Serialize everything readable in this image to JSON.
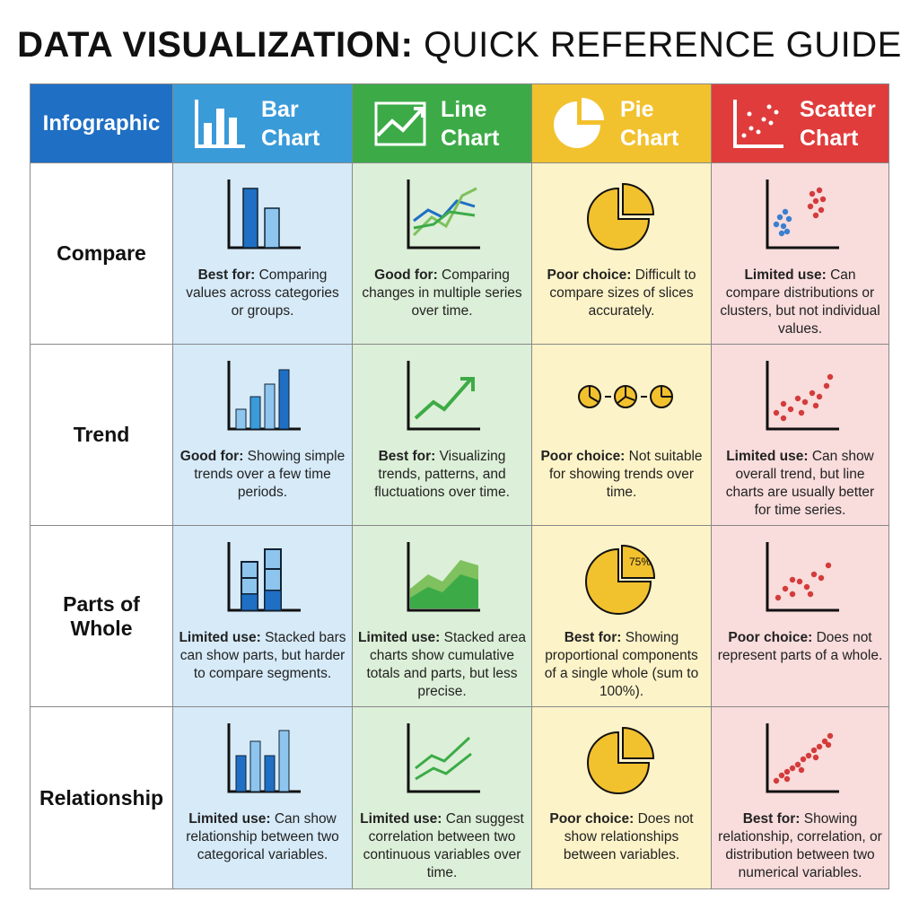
{
  "header": {
    "title_bold": "DATA VISUALIZATION:",
    "title_rest": "QUICK REFERENCE GUIDE"
  },
  "table": {
    "corner": "Infographic",
    "columns": [
      "Bar Chart",
      "Line Chart",
      "Pie Chart",
      "Scatter Chart"
    ],
    "rows": [
      {
        "label": "Compare",
        "cells": [
          {
            "lead": "Best for:",
            "text": "Comparing values across categories or groups."
          },
          {
            "lead": "Good for:",
            "text": "Comparing changes in multiple series over time."
          },
          {
            "lead": "Poor choice:",
            "text": "Difficult to compare sizes of slices accurately."
          },
          {
            "lead": "Limited use:",
            "text": "Can compare distributions or clusters, but not individual values."
          }
        ]
      },
      {
        "label": "Trend",
        "cells": [
          {
            "lead": "Good for:",
            "text": "Showing simple trends over a few time periods."
          },
          {
            "lead": "Best for:",
            "text": "Visualizing trends, patterns, and fluctuations over time."
          },
          {
            "lead": "Poor choice:",
            "text": "Not suitable for showing trends over time."
          },
          {
            "lead": "Limited use:",
            "text": "Can show overall trend, but line charts are usually better for time series."
          }
        ]
      },
      {
        "label": "Parts of Whole",
        "cells": [
          {
            "lead": "Limited use:",
            "text": "Stacked bars can show parts, but harder to compare segments."
          },
          {
            "lead": "Limited use:",
            "text": "Stacked area charts show cumulative totals and parts, but less precise."
          },
          {
            "lead": "Best for:",
            "text": "Showing proportional components of a single whole (sum to 100%)."
          },
          {
            "lead": "Poor choice:",
            "text": "Does not represent parts of a whole."
          }
        ]
      },
      {
        "label": "Relationship",
        "cells": [
          {
            "lead": "Limited use:",
            "text": "Can show relationship between two categorical variables."
          },
          {
            "lead": "Limited use:",
            "text": "Can suggest correlation between two continuous variables over time."
          },
          {
            "lead": "Poor choice:",
            "text": "Does not show relationships between variables."
          },
          {
            "lead": "Best for:",
            "text": "Showing relationship, correlation, or distribution between two numerical variables."
          }
        ]
      }
    ]
  },
  "pie_icon_label": "75%"
}
